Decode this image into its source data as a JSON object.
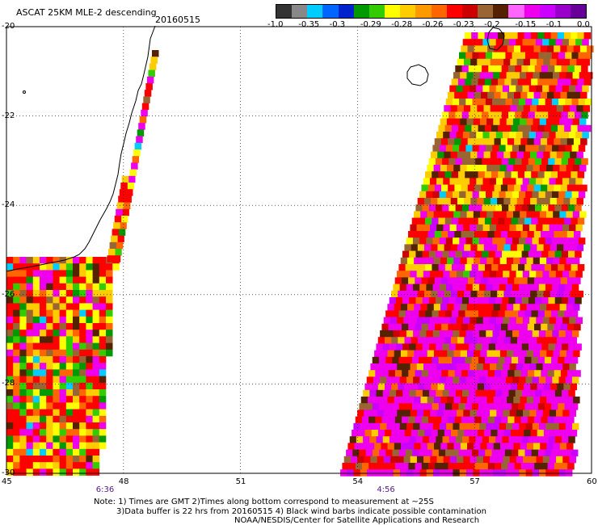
{
  "header": {
    "title": "ASCAT 25KM MLE-2 descending",
    "date": "20160515"
  },
  "colorbar": {
    "labels": [
      "-1.0",
      "-0.35",
      "-0.3",
      "-0.29",
      "-0.28",
      "-0.26",
      "-0.23",
      "-0.2",
      "-0.15",
      "-0.1",
      "0.0"
    ],
    "colors": [
      "#333333",
      "#888888",
      "#00ccff",
      "#0066ff",
      "#0022cc",
      "#009900",
      "#33cc00",
      "#ffff00",
      "#ffcc00",
      "#ff9900",
      "#ff6600",
      "#ff0000",
      "#cc0000",
      "#996633",
      "#552200",
      "#ff66ff",
      "#ee00ee",
      "#cc00ff",
      "#9900cc",
      "#660099"
    ]
  },
  "axes": {
    "lon_ticks": [
      "45",
      "48",
      "51",
      "54",
      "57",
      "60"
    ],
    "lat_ticks": [
      "-20",
      "-22",
      "-24",
      "-26",
      "-28",
      "-30"
    ]
  },
  "pass_times": [
    {
      "label": "6:36",
      "lon": 48
    },
    {
      "label": "4:56",
      "lon": 55.2
    }
  ],
  "notes": [
    "Note: 1) Times are GMT 2)Times along bottom correspond to measurement at ~25S",
    "3)Data buffer is 22 hrs from 20160515 4) Black wind barbs indicate possible contamination",
    "NOAA/NESDIS/Center for Satellite Applications and Research"
  ]
}
